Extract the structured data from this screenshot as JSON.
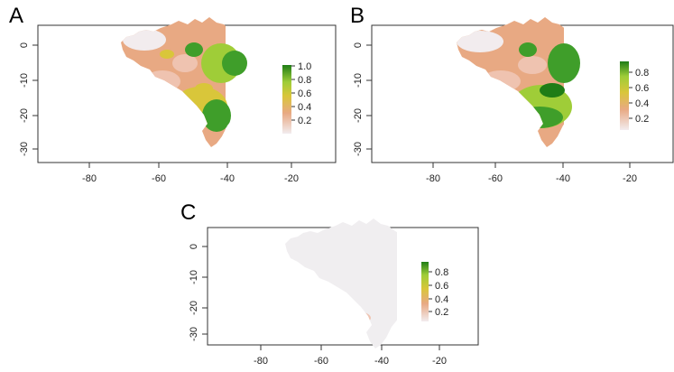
{
  "figure": {
    "panels": [
      {
        "label": "A",
        "xticks": [
          "-80",
          "-60",
          "-40",
          "-20"
        ],
        "yticks": [
          "0",
          "-10",
          "-20",
          "-30"
        ],
        "legend": [
          "1.0",
          "0.8",
          "0.6",
          "0.4",
          "0.2"
        ]
      },
      {
        "label": "B",
        "xticks": [
          "-80",
          "-60",
          "-40",
          "-20"
        ],
        "yticks": [
          "0",
          "-10",
          "-20",
          "-30"
        ],
        "legend": [
          "0.8",
          "0.6",
          "0.4",
          "0.2"
        ]
      },
      {
        "label": "C",
        "xticks": [
          "-80",
          "-60",
          "-40",
          "-20"
        ],
        "yticks": [
          "0",
          "-10",
          "-20",
          "-30"
        ],
        "legend": [
          "0.8",
          "0.6",
          "0.4",
          "0.2"
        ]
      }
    ],
    "colors": {
      "low": "#f2ecee",
      "pink": "#efc3b0",
      "salmon": "#e8a983",
      "yellow": "#d9c63a",
      "green_light": "#9fcd38",
      "green": "#3f9e2a",
      "green_dark": "#1f7d16"
    }
  }
}
